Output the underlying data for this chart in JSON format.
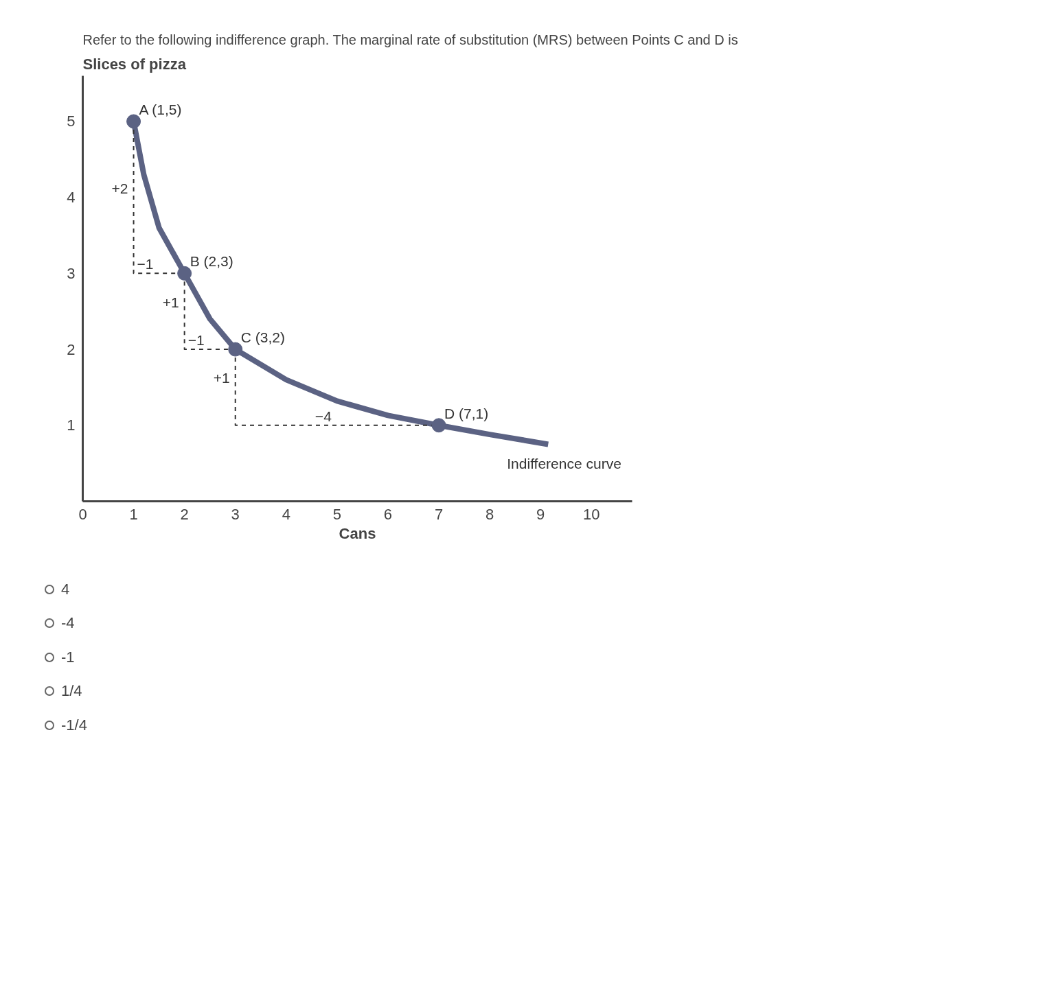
{
  "chart_data": {
    "type": "line",
    "title": "Refer to the following indifference graph. The marginal rate of substitution (MRS) between Points C and D is",
    "xlabel": "Cans",
    "ylabel": "Slices of pizza",
    "xlim": [
      0,
      10.8
    ],
    "ylim": [
      0,
      5.6
    ],
    "xticks": [
      0,
      1,
      2,
      3,
      4,
      5,
      6,
      7,
      8,
      9,
      10
    ],
    "yticks": [
      1,
      2,
      3,
      4,
      5
    ],
    "grid": false,
    "series": [
      {
        "color": "#5b6283",
        "marker": "none",
        "line_style": "solid",
        "x": [
          1,
          1.2,
          1.5,
          2,
          2.5,
          3,
          4,
          5,
          6,
          7,
          8,
          9.15
        ],
        "values": [
          5,
          4.3,
          3.6,
          3,
          2.4,
          2,
          1.6,
          1.32,
          1.13,
          1,
          0.88,
          0.75
        ]
      },
      {
        "type": "line",
        "color": "#333333",
        "marker": "none",
        "line_style": "dashed",
        "x": [
          1,
          1,
          2
        ],
        "values": [
          5,
          3,
          3
        ]
      },
      {
        "type": "line",
        "color": "#333333",
        "marker": "none",
        "line_style": "dashed",
        "x": [
          2,
          2,
          3
        ],
        "values": [
          3,
          2,
          2
        ]
      },
      {
        "type": "line",
        "color": "#333333",
        "marker": "none",
        "line_style": "dashed",
        "x": [
          3,
          3,
          7
        ],
        "values": [
          2,
          1,
          1
        ]
      },
      {
        "type": "scatter",
        "color": "#5b6283",
        "marker": "circle",
        "x": [
          1,
          2,
          3,
          7
        ],
        "values": [
          5,
          3,
          2,
          1
        ]
      }
    ],
    "annotations": [
      {
        "text": "A (1,5)",
        "x": 1,
        "y": 5
      },
      {
        "text": "B (2,3)",
        "x": 2,
        "y": 3
      },
      {
        "text": "C (3,2)",
        "x": 3,
        "y": 2
      },
      {
        "text": "D (7,1)",
        "x": 7,
        "y": 1
      },
      {
        "text": "Indifference curve",
        "x": 9.15,
        "y": 0.75
      },
      {
        "text": "+2",
        "x": 1,
        "y": 4
      },
      {
        "text": "−1",
        "x": 1.5,
        "y": 3
      },
      {
        "text": "+1",
        "x": 2,
        "y": 2.5
      },
      {
        "text": "−1",
        "x": 2.5,
        "y": 2
      },
      {
        "text": "+1",
        "x": 3,
        "y": 1.5
      },
      {
        "text": "−4",
        "x": 5,
        "y": 1
      },
      "4",
      "-4",
      "-1",
      "1/4",
      "-1/4"
    ]
  }
}
